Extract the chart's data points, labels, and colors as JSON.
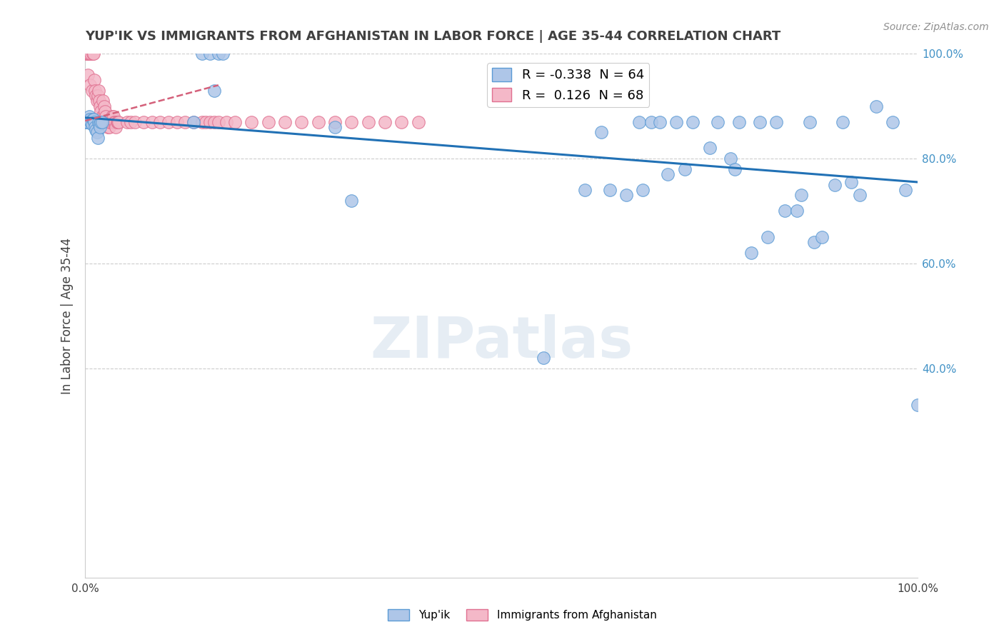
{
  "title": "YUP'IK VS IMMIGRANTS FROM AFGHANISTAN IN LABOR FORCE | AGE 35-44 CORRELATION CHART",
  "source": "Source: ZipAtlas.com",
  "ylabel": "In Labor Force | Age 35-44",
  "xlim": [
    0.0,
    1.0
  ],
  "ylim": [
    0.0,
    1.0
  ],
  "xtick_positions": [
    0.0,
    1.0
  ],
  "xtick_labels": [
    "0.0%",
    "100.0%"
  ],
  "ytick_positions": [
    0.4,
    0.6,
    0.8,
    1.0
  ],
  "ytick_labels": [
    "40.0%",
    "60.0%",
    "80.0%",
    "100.0%"
  ],
  "legend_r1": "R = -0.338",
  "legend_n1": "N = 64",
  "legend_r2": "R =  0.126",
  "legend_n2": "N = 68",
  "legend_label1": "Yup'ik",
  "legend_label2": "Immigrants from Afghanistan",
  "watermark": "ZIPatlas",
  "blue_color_face": "#aec6e8",
  "blue_color_edge": "#5b9bd5",
  "pink_color_face": "#f4b8c8",
  "pink_color_edge": "#e07090",
  "blue_line_color": "#2171b5",
  "pink_line_color": "#d4607a",
  "right_tick_color": "#4292c6",
  "title_color": "#404040",
  "grid_color": "#cccccc",
  "blue_x": [
    0.001,
    0.002,
    0.003,
    0.004,
    0.005,
    0.006,
    0.007,
    0.008,
    0.009,
    0.01,
    0.011,
    0.012,
    0.013,
    0.014,
    0.015,
    0.016,
    0.017,
    0.018,
    0.019,
    0.02,
    0.13,
    0.14,
    0.15,
    0.155,
    0.16,
    0.165,
    0.3,
    0.32,
    0.55,
    0.6,
    0.62,
    0.63,
    0.65,
    0.665,
    0.67,
    0.7,
    0.72,
    0.75,
    0.775,
    0.78,
    0.8,
    0.82,
    0.84,
    0.855,
    0.86,
    0.875,
    0.885,
    0.9,
    0.92,
    0.93,
    0.95,
    0.97,
    0.985,
    1.0,
    0.68,
    0.69,
    0.71,
    0.73,
    0.76,
    0.785,
    0.81,
    0.83,
    0.87,
    0.91
  ],
  "blue_y": [
    0.87,
    0.87,
    0.87,
    0.875,
    0.88,
    0.875,
    0.87,
    0.865,
    0.875,
    0.875,
    0.87,
    0.86,
    0.855,
    0.85,
    0.84,
    0.87,
    0.865,
    0.86,
    0.87,
    0.87,
    0.87,
    1.0,
    1.0,
    0.93,
    1.0,
    1.0,
    0.86,
    0.72,
    0.42,
    0.74,
    0.85,
    0.74,
    0.73,
    0.87,
    0.74,
    0.77,
    0.78,
    0.82,
    0.8,
    0.78,
    0.62,
    0.65,
    0.7,
    0.7,
    0.73,
    0.64,
    0.65,
    0.75,
    0.755,
    0.73,
    0.9,
    0.87,
    0.74,
    0.33,
    0.87,
    0.87,
    0.87,
    0.87,
    0.87,
    0.87,
    0.87,
    0.87,
    0.87,
    0.87
  ],
  "pink_x": [
    0.001,
    0.002,
    0.003,
    0.004,
    0.005,
    0.006,
    0.007,
    0.008,
    0.009,
    0.01,
    0.011,
    0.012,
    0.013,
    0.014,
    0.015,
    0.016,
    0.017,
    0.018,
    0.019,
    0.02,
    0.021,
    0.022,
    0.023,
    0.024,
    0.025,
    0.026,
    0.027,
    0.028,
    0.029,
    0.03,
    0.031,
    0.032,
    0.033,
    0.034,
    0.035,
    0.036,
    0.037,
    0.038,
    0.039,
    0.04,
    0.05,
    0.055,
    0.06,
    0.07,
    0.08,
    0.09,
    0.1,
    0.11,
    0.12,
    0.13,
    0.14,
    0.145,
    0.15,
    0.155,
    0.16,
    0.17,
    0.18,
    0.2,
    0.22,
    0.24,
    0.26,
    0.28,
    0.3,
    0.32,
    0.34,
    0.36,
    0.38,
    0.4
  ],
  "pink_y": [
    1.0,
    1.0,
    0.96,
    1.0,
    1.0,
    0.94,
    1.0,
    0.93,
    1.0,
    1.0,
    0.95,
    0.93,
    0.92,
    0.91,
    0.92,
    0.93,
    0.91,
    0.9,
    0.89,
    0.88,
    0.91,
    0.88,
    0.9,
    0.89,
    0.88,
    0.87,
    0.86,
    0.87,
    0.86,
    0.87,
    0.87,
    0.88,
    0.87,
    0.88,
    0.87,
    0.87,
    0.86,
    0.87,
    0.87,
    0.87,
    0.87,
    0.87,
    0.87,
    0.87,
    0.87,
    0.87,
    0.87,
    0.87,
    0.87,
    0.87,
    0.87,
    0.87,
    0.87,
    0.87,
    0.87,
    0.87,
    0.87,
    0.87,
    0.87,
    0.87,
    0.87,
    0.87,
    0.87,
    0.87,
    0.87,
    0.87,
    0.87,
    0.87
  ],
  "blue_line_x": [
    0.0,
    1.0
  ],
  "blue_line_y": [
    0.878,
    0.755
  ],
  "pink_line_x": [
    0.0,
    0.16
  ],
  "pink_line_y": [
    0.872,
    0.94
  ]
}
